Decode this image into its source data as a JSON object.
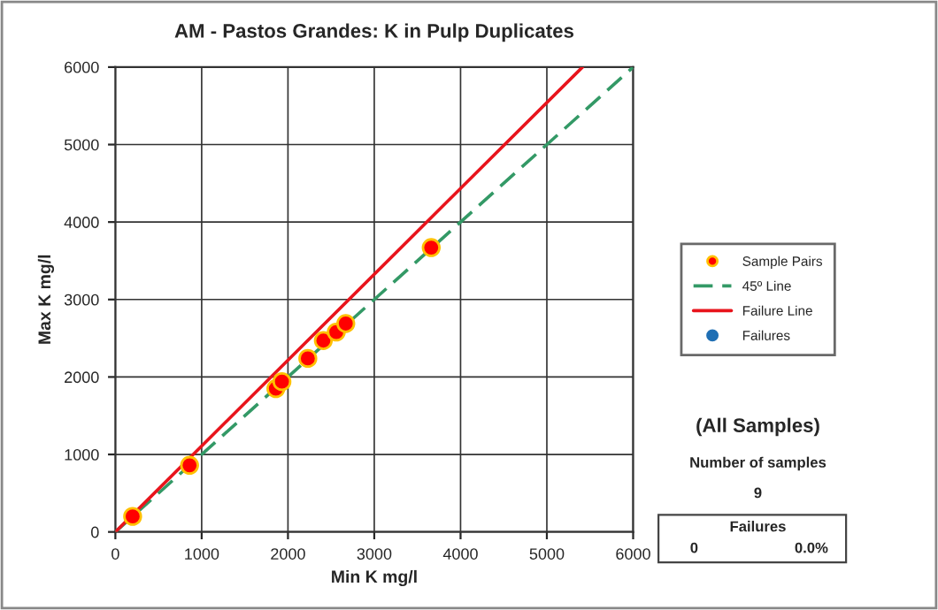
{
  "chart_data": {
    "type": "scatter",
    "title": "AM - Pastos Grandes: K in Pulp Duplicates",
    "xlabel": "Min K mg/l",
    "ylabel": "Max K mg/l",
    "xlim": [
      0,
      6000
    ],
    "ylim": [
      0,
      6000
    ],
    "xticks": [
      0,
      1000,
      2000,
      3000,
      4000,
      5000,
      6000
    ],
    "yticks": [
      0,
      1000,
      2000,
      3000,
      4000,
      5000,
      6000
    ],
    "grid": true,
    "legend": "right",
    "series": [
      {
        "name": "Sample Pairs",
        "marker": "circle",
        "color": "#ff0000",
        "x": [
          200,
          860,
          1860,
          1930,
          2230,
          2410,
          2560,
          2670,
          3660
        ],
        "values": [
          200,
          860,
          1850,
          1940,
          2240,
          2470,
          2580,
          2690,
          3670
        ]
      },
      {
        "name": "45º Line",
        "type": "line",
        "line_style": "dashed",
        "color": "#339966",
        "x": [
          0,
          6000
        ],
        "values": [
          0,
          6000
        ]
      },
      {
        "name": "Failure Line",
        "type": "line",
        "line_style": "solid",
        "color": "#e8141c",
        "x": [
          0,
          5413
        ],
        "values": [
          0,
          6000
        ]
      },
      {
        "name": "Failures",
        "marker": "circle",
        "color": "#1f6fb4"
      }
    ],
    "annotations": [
      "(All Samples)",
      "Number of samples",
      "9",
      "Failures",
      "0",
      "0.0%"
    ]
  }
}
